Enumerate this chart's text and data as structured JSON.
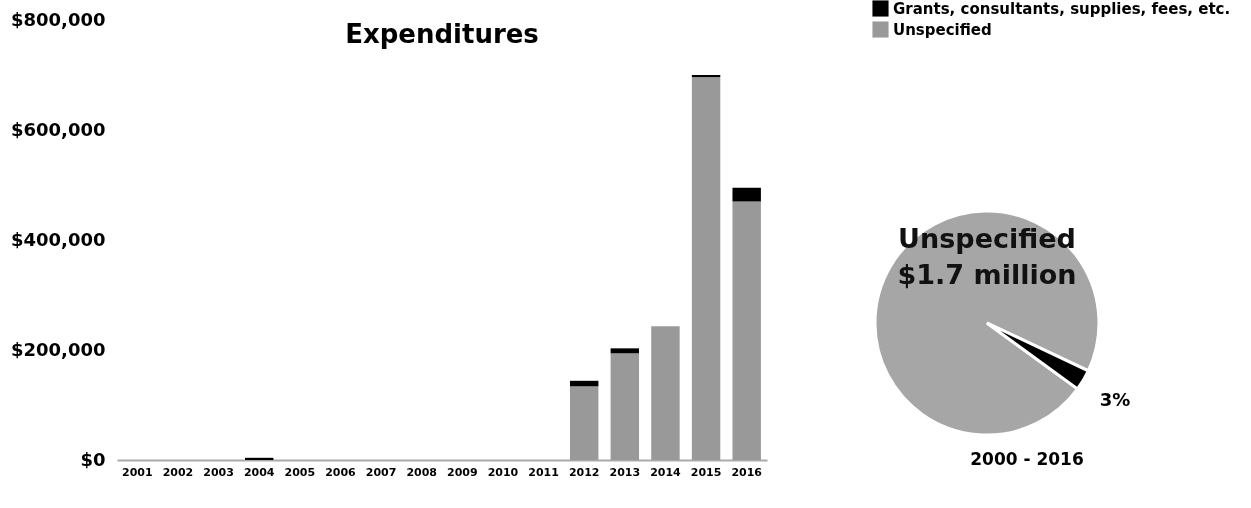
{
  "chart_data": [
    {
      "type": "bar",
      "title": "Expenditures",
      "categories": [
        "2001",
        "2002",
        "2003",
        "2004",
        "2005",
        "2006",
        "2007",
        "2008",
        "2009",
        "2010",
        "2011",
        "2012",
        "2013",
        "2014",
        "2015",
        "2016"
      ],
      "series": [
        {
          "name": "Unspecified",
          "color": "#999999",
          "values": [
            0,
            0,
            0,
            0,
            0,
            0,
            0,
            0,
            0,
            0,
            0,
            134000,
            194000,
            243000,
            696000,
            470000
          ]
        },
        {
          "name": "Grants, consultants, supplies, fees, etc.",
          "color": "#000000",
          "values": [
            0,
            0,
            0,
            4000,
            0,
            0,
            0,
            0,
            0,
            0,
            0,
            10000,
            9000,
            0,
            4000,
            25000
          ]
        }
      ],
      "stacked": true,
      "ylim": [
        0,
        800000
      ],
      "yticks": [
        {
          "value": 0,
          "label": "$0"
        },
        {
          "value": 200000,
          "label": "$200,000"
        },
        {
          "value": 400000,
          "label": "$400,000"
        },
        {
          "value": 600000,
          "label": "$600,000"
        },
        {
          "value": 800000,
          "label": "$800,000"
        }
      ],
      "grid": false,
      "legend": "top right"
    },
    {
      "type": "pie",
      "title": "2000 - 2016",
      "categories": [
        "Unspecified",
        null
      ],
      "values": [
        97,
        3
      ],
      "colors": [
        "#a6a6a6",
        "#000000"
      ],
      "value_labels": [
        null,
        "3%"
      ],
      "annotations": [
        "$1.7 million"
      ]
    }
  ]
}
